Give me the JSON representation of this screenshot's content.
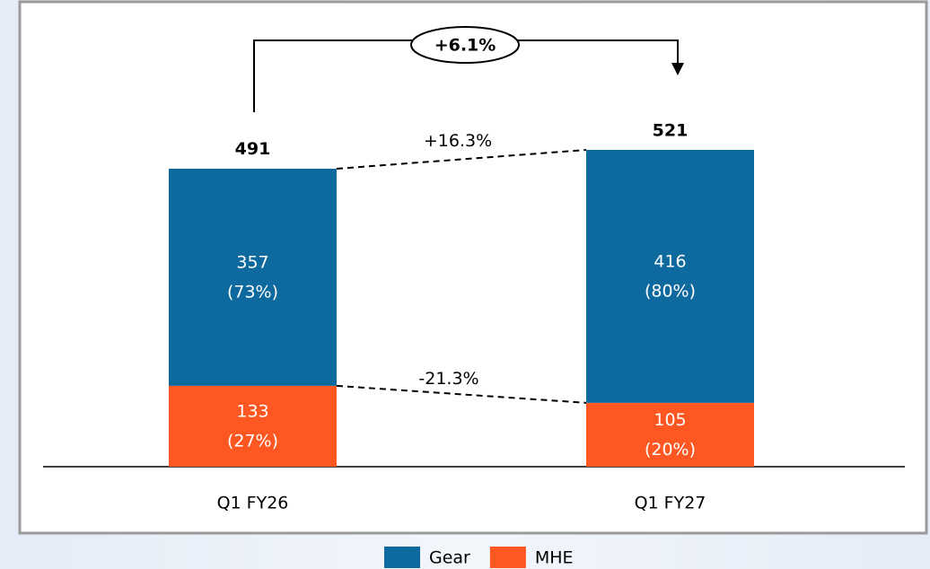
{
  "chart_data": {
    "type": "stacked_bar",
    "categories": [
      "Q1 FY26",
      "Q1 FY27"
    ],
    "series": [
      {
        "name": "MHE",
        "color": "#ff5722",
        "values": [
          133,
          105
        ],
        "share_labels": [
          "(27%)",
          "(20%)"
        ]
      },
      {
        "name": "Gear",
        "color": "#0e6a9e",
        "values": [
          357,
          416
        ],
        "share_labels": [
          "(73%)",
          "(80%)"
        ]
      }
    ],
    "totals": [
      491,
      521
    ],
    "annotations": [
      "+16.3%",
      "-21.3%",
      "+6.1%"
    ],
    "legend_order": [
      "Gear",
      "MHE"
    ]
  }
}
